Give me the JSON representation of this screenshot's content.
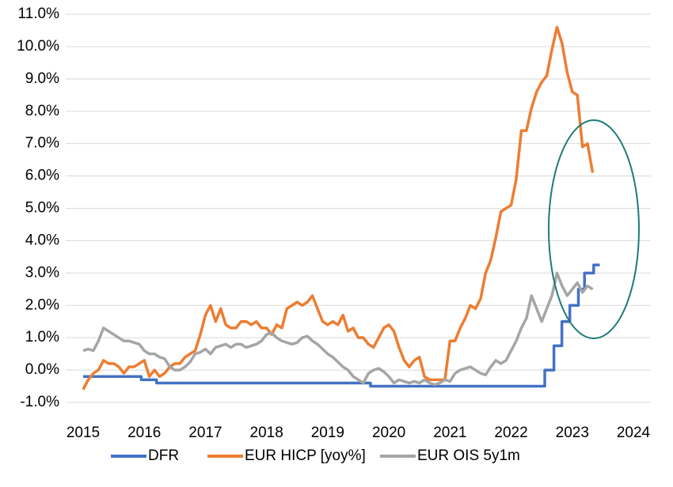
{
  "chart_data": {
    "type": "line",
    "xlim": [
      2015,
      2024
    ],
    "xticks": [
      2015,
      2016,
      2017,
      2018,
      2019,
      2020,
      2021,
      2022,
      2023,
      2024
    ],
    "ylim": [
      -1,
      11
    ],
    "yticks": [
      {
        "value": -1,
        "label": "-1.0%"
      },
      {
        "value": 0,
        "label": "0.0%"
      },
      {
        "value": 1,
        "label": "1.0%"
      },
      {
        "value": 2,
        "label": "2.0%"
      },
      {
        "value": 3,
        "label": "3.0%"
      },
      {
        "value": 4,
        "label": "4.0%"
      },
      {
        "value": 5,
        "label": "5.0%"
      },
      {
        "value": 6,
        "label": "6.0%"
      },
      {
        "value": 7,
        "label": "7.0%"
      },
      {
        "value": 8,
        "label": "8.0%"
      },
      {
        "value": 9,
        "label": "9.0%"
      },
      {
        "value": 10,
        "label": "10.0%"
      },
      {
        "value": 11,
        "label": "11.0%"
      }
    ],
    "grid": true,
    "legend": "bottom",
    "series": [
      {
        "name": "DFR",
        "color": "#4472c4",
        "x": [
          2015.0,
          2015.95,
          2015.95,
          2016.2,
          2016.2,
          2019.7,
          2019.7,
          2022.55,
          2022.55,
          2022.7,
          2022.7,
          2022.83,
          2022.83,
          2022.96,
          2022.96,
          2023.1,
          2023.1,
          2023.2,
          2023.2,
          2023.35,
          2023.35,
          2023.45
        ],
        "values": [
          -0.2,
          -0.2,
          -0.3,
          -0.3,
          -0.4,
          -0.4,
          -0.5,
          -0.5,
          0,
          0,
          0.75,
          0.75,
          1.5,
          1.5,
          2.0,
          2.0,
          2.5,
          2.5,
          3.0,
          3.0,
          3.25,
          3.25
        ]
      },
      {
        "name": "EUR HICP [yoy%]",
        "color": "#ed7d31",
        "x": [
          2015.0,
          2015.083,
          2015.167,
          2015.25,
          2015.333,
          2015.417,
          2015.5,
          2015.583,
          2015.667,
          2015.75,
          2015.833,
          2015.917,
          2016.0,
          2016.083,
          2016.167,
          2016.25,
          2016.333,
          2016.417,
          2016.5,
          2016.583,
          2016.667,
          2016.75,
          2016.833,
          2016.917,
          2017.0,
          2017.083,
          2017.167,
          2017.25,
          2017.333,
          2017.417,
          2017.5,
          2017.583,
          2017.667,
          2017.75,
          2017.833,
          2017.917,
          2018.0,
          2018.083,
          2018.167,
          2018.25,
          2018.333,
          2018.417,
          2018.5,
          2018.583,
          2018.667,
          2018.75,
          2018.833,
          2018.917,
          2019.0,
          2019.083,
          2019.167,
          2019.25,
          2019.333,
          2019.417,
          2019.5,
          2019.583,
          2019.667,
          2019.75,
          2019.833,
          2019.917,
          2020.0,
          2020.083,
          2020.167,
          2020.25,
          2020.333,
          2020.417,
          2020.5,
          2020.583,
          2020.667,
          2020.75,
          2020.833,
          2020.917,
          2021.0,
          2021.083,
          2021.167,
          2021.25,
          2021.333,
          2021.417,
          2021.5,
          2021.583,
          2021.667,
          2021.75,
          2021.833,
          2021.917,
          2022.0,
          2022.083,
          2022.167,
          2022.25,
          2022.333,
          2022.417,
          2022.5,
          2022.583,
          2022.667,
          2022.75,
          2022.833,
          2022.917,
          2023.0,
          2023.083,
          2023.167,
          2023.25,
          2023.333
        ],
        "values": [
          -0.6,
          -0.3,
          -0.1,
          0,
          0.3,
          0.2,
          0.2,
          0.1,
          -0.1,
          0.1,
          0.1,
          0.2,
          0.3,
          -0.2,
          0,
          -0.2,
          -0.1,
          0.1,
          0.2,
          0.2,
          0.4,
          0.5,
          0.6,
          1.1,
          1.7,
          2.0,
          1.5,
          1.9,
          1.4,
          1.3,
          1.3,
          1.5,
          1.5,
          1.4,
          1.5,
          1.3,
          1.3,
          1.1,
          1.4,
          1.3,
          1.9,
          2.0,
          2.1,
          2.0,
          2.1,
          2.3,
          1.9,
          1.5,
          1.4,
          1.5,
          1.4,
          1.7,
          1.2,
          1.3,
          1.0,
          1.0,
          0.8,
          0.7,
          1.0,
          1.3,
          1.4,
          1.2,
          0.7,
          0.3,
          0.1,
          0.3,
          0.4,
          -0.2,
          -0.3,
          -0.3,
          -0.3,
          -0.3,
          0.9,
          0.9,
          1.3,
          1.6,
          2.0,
          1.9,
          2.2,
          3.0,
          3.4,
          4.1,
          4.9,
          5.0,
          5.1,
          5.9,
          7.4,
          7.4,
          8.1,
          8.6,
          8.9,
          9.1,
          9.9,
          10.6,
          10.1,
          9.2,
          8.6,
          8.5,
          6.9,
          7.0,
          6.1
        ]
      },
      {
        "name": "EUR OIS 5y1m",
        "color": "#a5a5a5",
        "x": [
          2015.0,
          2015.083,
          2015.167,
          2015.25,
          2015.333,
          2015.417,
          2015.5,
          2015.583,
          2015.667,
          2015.75,
          2015.833,
          2015.917,
          2016.0,
          2016.083,
          2016.167,
          2016.25,
          2016.333,
          2016.417,
          2016.5,
          2016.583,
          2016.667,
          2016.75,
          2016.833,
          2016.917,
          2017.0,
          2017.083,
          2017.167,
          2017.25,
          2017.333,
          2017.417,
          2017.5,
          2017.583,
          2017.667,
          2017.75,
          2017.833,
          2017.917,
          2018.0,
          2018.083,
          2018.167,
          2018.25,
          2018.333,
          2018.417,
          2018.5,
          2018.583,
          2018.667,
          2018.75,
          2018.833,
          2018.917,
          2019.0,
          2019.083,
          2019.167,
          2019.25,
          2019.333,
          2019.417,
          2019.5,
          2019.583,
          2019.667,
          2019.75,
          2019.833,
          2019.917,
          2020.0,
          2020.083,
          2020.167,
          2020.25,
          2020.333,
          2020.417,
          2020.5,
          2020.583,
          2020.667,
          2020.75,
          2020.833,
          2020.917,
          2021.0,
          2021.083,
          2021.167,
          2021.25,
          2021.333,
          2021.417,
          2021.5,
          2021.583,
          2021.667,
          2021.75,
          2021.833,
          2021.917,
          2022.0,
          2022.083,
          2022.167,
          2022.25,
          2022.333,
          2022.417,
          2022.5,
          2022.583,
          2022.667,
          2022.75,
          2022.833,
          2022.917,
          2023.0,
          2023.083,
          2023.167,
          2023.25,
          2023.333
        ],
        "values": [
          0.6,
          0.65,
          0.6,
          0.9,
          1.3,
          1.2,
          1.1,
          1.0,
          0.9,
          0.9,
          0.85,
          0.8,
          0.6,
          0.5,
          0.5,
          0.4,
          0.35,
          0.1,
          0.0,
          0.0,
          0.1,
          0.25,
          0.5,
          0.55,
          0.65,
          0.5,
          0.7,
          0.75,
          0.8,
          0.7,
          0.8,
          0.8,
          0.7,
          0.75,
          0.8,
          0.9,
          1.1,
          1.15,
          1.0,
          0.9,
          0.85,
          0.8,
          0.85,
          1.0,
          1.05,
          0.9,
          0.8,
          0.65,
          0.5,
          0.4,
          0.25,
          0.1,
          0.0,
          -0.2,
          -0.3,
          -0.4,
          -0.1,
          0.0,
          0.05,
          -0.05,
          -0.2,
          -0.4,
          -0.3,
          -0.35,
          -0.4,
          -0.35,
          -0.4,
          -0.3,
          -0.4,
          -0.45,
          -0.4,
          -0.3,
          -0.35,
          -0.1,
          0.0,
          0.05,
          0.1,
          0.0,
          -0.1,
          -0.15,
          0.1,
          0.3,
          0.2,
          0.3,
          0.6,
          0.9,
          1.3,
          1.6,
          2.3,
          1.9,
          1.5,
          1.9,
          2.3,
          3.0,
          2.6,
          2.3,
          2.5,
          2.7,
          2.4,
          2.6,
          2.5
        ]
      }
    ]
  }
}
